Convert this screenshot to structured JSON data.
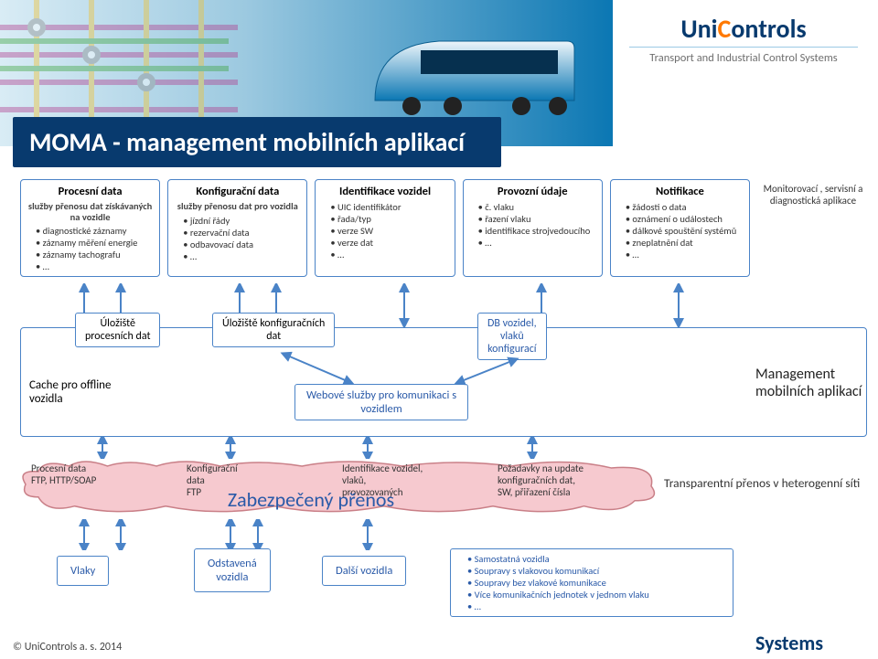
{
  "colors": {
    "navy": "#083a6e",
    "blue": "#4a83c7",
    "linkblue": "#2a5aa8",
    "orange": "#ff7900",
    "cloud_fill": "#f6c9cf",
    "cloud_stroke": "#c97f87",
    "sky1": "#d9ecf5",
    "sky2": "#0b77b3"
  },
  "logo": {
    "pre": "Uni",
    "c": "C",
    "post": "ontrols",
    "sub": "Transport and Industrial Control Systems"
  },
  "title": "MOMA - management mobilních aplikací",
  "cards": [
    {
      "title": "Procesní data",
      "sub": "služby přenosu dat získávaných na vozidle",
      "items": [
        "diagnostické záznamy",
        "záznamy měření energie",
        "záznamy tachografu",
        "…"
      ]
    },
    {
      "title": "Konfigurační data",
      "sub": "služby přenosu dat pro vozidla",
      "items": [
        "jízdní řády",
        "rezervační data",
        "odbavovací data",
        "…"
      ]
    },
    {
      "title": "Identifikace vozidel",
      "sub": "",
      "items": [
        "UIC identifikátor",
        "řada/typ",
        "verze SW",
        "verze dat",
        "…"
      ]
    },
    {
      "title": "Provozní údaje",
      "sub": "",
      "items": [
        "č. vlaku",
        "řazení vlaku",
        "identifikace strojvedoucího",
        "…"
      ]
    },
    {
      "title": "Notifikace",
      "sub": "",
      "items": [
        "žádosti o data",
        "oznámení o událostech",
        "dálkové spouštění systémů",
        "zneplatnění dat",
        "…"
      ]
    }
  ],
  "right_col": "Monitorovací , servisní a diagnostická aplikace",
  "mid": {
    "storage1": "Úložiště\nprocesních dat",
    "storage2": "Úložiště konfiguračních\ndat",
    "db": "DB vozidel,\nvlaků\nkonfigurací",
    "web": "Webové služby pro komunikaci s\nvozidlem",
    "cache": "Cache pro offline\nvozidla",
    "mgmt": "Management mobilních aplikací"
  },
  "cloud_items": [
    "Procesní data\nFTP, HTTP/SOAP",
    "Konfigurační\ndata\nFTP",
    "Identifikace vozidel,\nvlaků,\nprovozovaných",
    "Požadavky na update\nkonfiguračních dat,\nSW, přiřazení čísla"
  ],
  "big_transfer": "Zabezpečený přenos",
  "hetero": "Transparentní přenos v heterogenní síti",
  "vehicles": {
    "a": "Vlaky",
    "b": "Odstavená\nvozidla",
    "c": "Další vozidla",
    "list": [
      "Samostatná vozidla",
      "Soupravy s vlakovou komunikací",
      "Soupravy bez vlakové komunikace",
      "Více komunikačních jednotek v jednom vlaku",
      "…"
    ]
  },
  "systems": "Systems",
  "copyright": "© UniControls a. s. 2014"
}
